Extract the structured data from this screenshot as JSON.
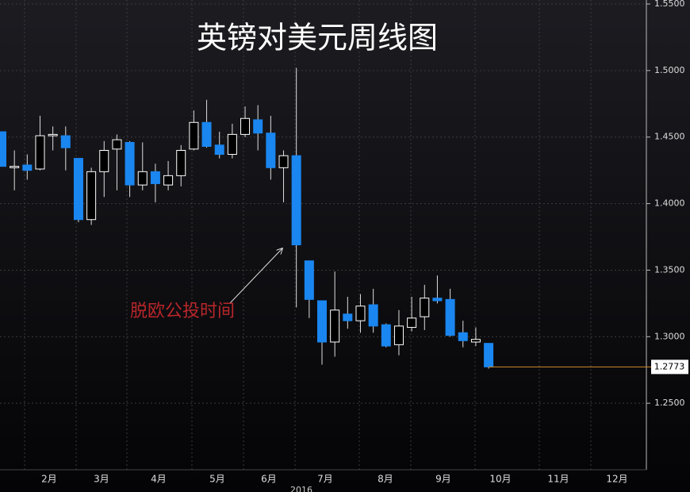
{
  "chart_data": {
    "type": "candlestick",
    "title": "英镑对美元周线图",
    "annotation": "脱欧公投时间",
    "x_labels": [
      "2月",
      "3月",
      "4月",
      "5月",
      "6月",
      "7月",
      "8月",
      "9月",
      "10月",
      "11月",
      "12月"
    ],
    "year_label": "2016",
    "last_price": {
      "value": 1.2773,
      "label": "1.2773"
    },
    "up_color": "#ffffff",
    "down_color": "#1a86f0",
    "last_line_color": "#d08a2a",
    "open": [
      1.454,
      1.427,
      1.429,
      1.426,
      1.451,
      1.451,
      1.434,
      1.388,
      1.424,
      1.441,
      1.446,
      1.414,
      1.424,
      1.414,
      1.421,
      1.441,
      1.461,
      1.444,
      1.437,
      1.452,
      1.463,
      1.453,
      1.427,
      1.436,
      1.357,
      1.327,
      1.296,
      1.317,
      1.312,
      1.324,
      1.309,
      1.294,
      1.307,
      1.315,
      1.329,
      1.328,
      1.303,
      1.296,
      1.295
    ],
    "high": [
      1.454,
      1.44,
      1.437,
      1.466,
      1.458,
      1.458,
      1.434,
      1.427,
      1.447,
      1.452,
      1.447,
      1.446,
      1.43,
      1.432,
      1.444,
      1.47,
      1.478,
      1.454,
      1.46,
      1.473,
      1.474,
      1.466,
      1.44,
      1.502,
      1.357,
      1.327,
      1.349,
      1.33,
      1.332,
      1.336,
      1.31,
      1.32,
      1.33,
      1.339,
      1.346,
      1.336,
      1.312,
      1.307,
      1.295
    ],
    "low": [
      1.428,
      1.41,
      1.418,
      1.425,
      1.44,
      1.425,
      1.386,
      1.384,
      1.405,
      1.41,
      1.405,
      1.41,
      1.401,
      1.41,
      1.413,
      1.44,
      1.442,
      1.434,
      1.434,
      1.45,
      1.44,
      1.418,
      1.401,
      1.322,
      1.314,
      1.279,
      1.285,
      1.306,
      1.303,
      1.303,
      1.292,
      1.286,
      1.304,
      1.305,
      1.325,
      1.3,
      1.292,
      1.293,
      1.276
    ],
    "close": [
      1.428,
      1.428,
      1.425,
      1.451,
      1.452,
      1.442,
      1.388,
      1.424,
      1.44,
      1.448,
      1.414,
      1.424,
      1.415,
      1.421,
      1.44,
      1.461,
      1.443,
      1.437,
      1.452,
      1.464,
      1.453,
      1.427,
      1.436,
      1.369,
      1.328,
      1.296,
      1.32,
      1.312,
      1.323,
      1.308,
      1.293,
      1.308,
      1.314,
      1.329,
      1.327,
      1.301,
      1.297,
      1.298,
      1.2773
    ],
    "ylim": [
      1.2,
      1.553
    ],
    "yticks": [
      {
        "value": 1.25,
        "label": "1.2500"
      },
      {
        "value": 1.3,
        "label": "1.3000"
      },
      {
        "value": 1.35,
        "label": "1.3500"
      },
      {
        "value": 1.4,
        "label": "1.4000"
      },
      {
        "value": 1.45,
        "label": "1.4500"
      },
      {
        "value": 1.5,
        "label": "1.5000"
      },
      {
        "value": 1.55,
        "label": "1.5500"
      }
    ],
    "grid": true
  }
}
